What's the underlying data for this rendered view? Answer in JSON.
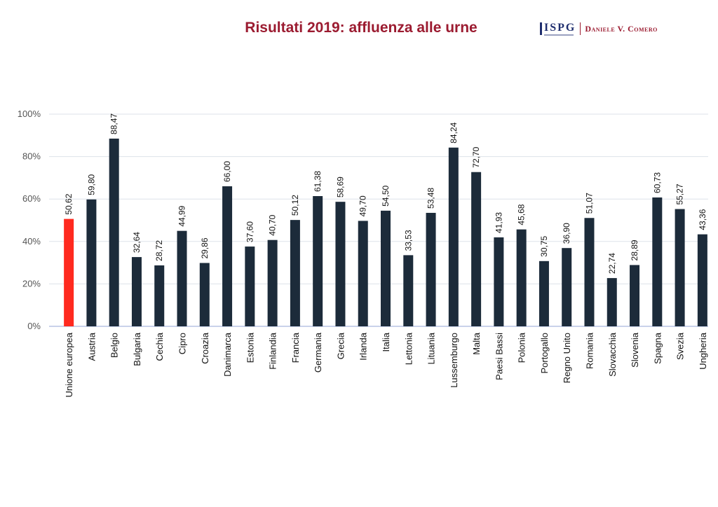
{
  "header": {
    "title": "Risultati 2019: affluenza alle urne",
    "logo_text": "ISPG",
    "author": "Daniele V. Comero"
  },
  "colors": {
    "title": "#9b1b30",
    "highlight_bar": "#ff2a1f",
    "bar": "#1c2b3a",
    "grid": "#dde2ea",
    "axis": "#b7c4e4"
  },
  "chart_data": {
    "type": "bar",
    "title": "Risultati 2019: affluenza alle urne",
    "xlabel": "",
    "ylabel": "",
    "ylim": [
      0,
      100
    ],
    "yticks": [
      "0%",
      "20%",
      "40%",
      "60%",
      "80%",
      "100%"
    ],
    "grid": true,
    "categories": [
      "Unione europea",
      "Austria",
      "Belgio",
      "Bulgaria",
      "Cechia",
      "Cipro",
      "Croazia",
      "Danimarca",
      "Estonia",
      "Finlandia",
      "Francia",
      "Germania",
      "Grecia",
      "Irlanda",
      "Italia",
      "Lettonia",
      "Lituania",
      "Lussemburgo",
      "Malta",
      "Paesi Bassi",
      "Polonia",
      "Portogallo",
      "Regno Unito",
      "Romania",
      "Slovacchia",
      "Slovenia",
      "Spagna",
      "Svezia",
      "Ungheria"
    ],
    "values": [
      50.62,
      59.8,
      88.47,
      32.64,
      28.72,
      44.99,
      29.86,
      66.0,
      37.6,
      40.7,
      50.12,
      61.38,
      58.69,
      49.7,
      54.5,
      33.53,
      53.48,
      84.24,
      72.7,
      41.93,
      45.68,
      30.75,
      36.9,
      51.07,
      22.74,
      28.89,
      60.73,
      55.27,
      43.36
    ],
    "value_labels": [
      "50,62",
      "59,80",
      "88,47",
      "32,64",
      "28,72",
      "44,99",
      "29,86",
      "66,00",
      "37,60",
      "40,70",
      "50,12",
      "61,38",
      "58,69",
      "49,70",
      "54,50",
      "33,53",
      "53,48",
      "84,24",
      "72,70",
      "41,93",
      "45,68",
      "30,75",
      "36,90",
      "51,07",
      "22,74",
      "28,89",
      "60,73",
      "55,27",
      "43,36"
    ],
    "highlight_index": 0
  }
}
